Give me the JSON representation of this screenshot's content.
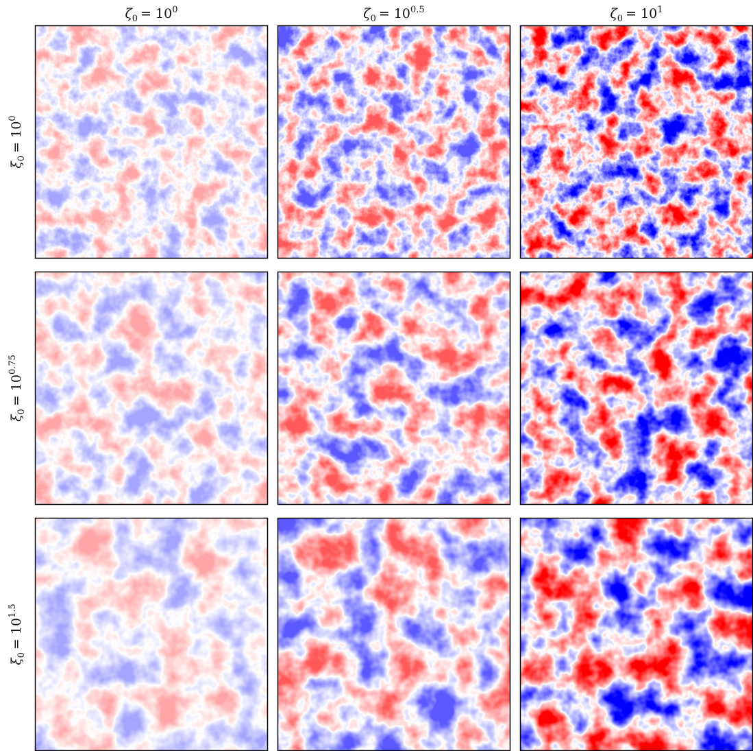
{
  "columns": [
    {
      "symbol": "ζ",
      "subscript": "0",
      "relation": "= 10",
      "exponent": "0"
    },
    {
      "symbol": "ζ",
      "subscript": "0",
      "relation": "= 10",
      "exponent": "0.5"
    },
    {
      "symbol": "ζ",
      "subscript": "0",
      "relation": "= 10",
      "exponent": "1"
    }
  ],
  "rows": [
    {
      "symbol": "ξ",
      "subscript": "0",
      "relation": "= 10",
      "exponent": "0"
    },
    {
      "symbol": "ξ",
      "subscript": "0",
      "relation": "= 10",
      "exponent": "0.75"
    },
    {
      "symbol": "ξ",
      "subscript": "0",
      "relation": "= 10",
      "exponent": "1.5"
    }
  ]
}
